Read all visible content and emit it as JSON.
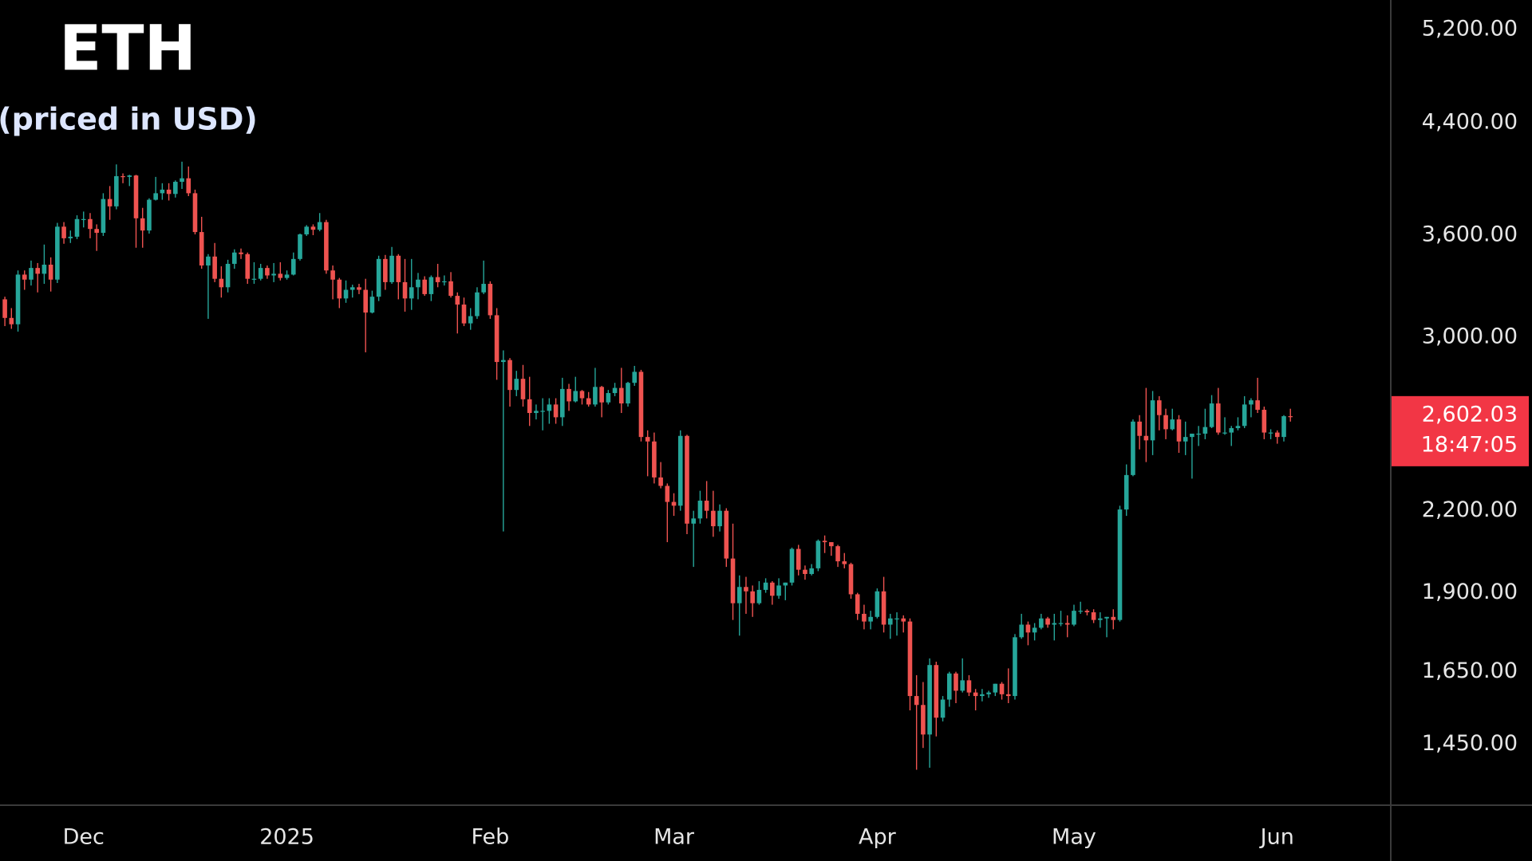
{
  "chart_data": {
    "type": "candlestick",
    "title": "ETH",
    "subtitle": "(priced in USD)",
    "log_scale": true,
    "up_color": "#26a69a",
    "down_color": "#ef5350",
    "last_price_color": "#f23645",
    "last_price_label": "2,602.03",
    "countdown": "18:47:05",
    "ylim": [
      1300,
      5480
    ],
    "yticks": [
      {
        "value": 5200,
        "label": "5,200.00"
      },
      {
        "value": 4400,
        "label": "4,400.00"
      },
      {
        "value": 3600,
        "label": "3,600.00"
      },
      {
        "value": 3000,
        "label": "3,000.00"
      },
      {
        "value": 2200,
        "label": "2,200.00"
      },
      {
        "value": 1900,
        "label": "1,900.00"
      },
      {
        "value": 1650,
        "label": "1,650.00"
      },
      {
        "value": 1450,
        "label": "1,450.00"
      }
    ],
    "categories": [
      null,
      null,
      null,
      null,
      null,
      null,
      null,
      null,
      null,
      null,
      null,
      null,
      "Dec",
      null,
      null,
      null,
      null,
      null,
      null,
      null,
      null,
      null,
      null,
      null,
      null,
      null,
      null,
      null,
      null,
      null,
      null,
      null,
      null,
      null,
      null,
      null,
      null,
      null,
      null,
      null,
      null,
      null,
      null,
      "2025",
      null,
      null,
      null,
      null,
      null,
      null,
      null,
      null,
      null,
      null,
      null,
      null,
      null,
      null,
      null,
      null,
      null,
      null,
      null,
      null,
      null,
      null,
      null,
      null,
      null,
      null,
      null,
      null,
      null,
      null,
      "Feb",
      null,
      null,
      null,
      null,
      null,
      null,
      null,
      null,
      null,
      null,
      null,
      null,
      null,
      null,
      null,
      null,
      null,
      null,
      null,
      null,
      null,
      null,
      null,
      null,
      null,
      null,
      null,
      "Mar",
      null,
      null,
      null,
      null,
      null,
      null,
      null,
      null,
      null,
      null,
      null,
      null,
      null,
      null,
      null,
      null,
      null,
      null,
      null,
      null,
      null,
      null,
      null,
      null,
      null,
      null,
      null,
      null,
      null,
      null,
      "Apr",
      null,
      null,
      null,
      null,
      null,
      null,
      null,
      null,
      null,
      null,
      null,
      null,
      null,
      null,
      null,
      null,
      null,
      null,
      null,
      null,
      null,
      null,
      null,
      null,
      null,
      null,
      null,
      null,
      null,
      "May",
      null,
      null,
      null,
      null,
      null,
      null,
      null,
      null,
      null,
      null,
      null,
      null,
      null,
      null,
      null,
      null,
      null,
      null,
      null,
      null,
      null,
      null,
      null,
      null,
      null,
      null,
      null,
      null,
      null,
      null,
      "Jun",
      null,
      null
    ],
    "candles": [
      [
        3210,
        3225,
        3060,
        3105
      ],
      [
        3105,
        3160,
        3045,
        3070
      ],
      [
        3070,
        3380,
        3030,
        3355
      ],
      [
        3355,
        3380,
        3265,
        3325
      ],
      [
        3325,
        3440,
        3290,
        3395
      ],
      [
        3395,
        3425,
        3250,
        3360
      ],
      [
        3360,
        3540,
        3300,
        3415
      ],
      [
        3415,
        3460,
        3255,
        3325
      ],
      [
        3325,
        3680,
        3305,
        3655
      ],
      [
        3655,
        3685,
        3545,
        3580
      ],
      [
        3580,
        3630,
        3550,
        3590
      ],
      [
        3590,
        3730,
        3575,
        3705
      ],
      [
        3705,
        3755,
        3650,
        3705
      ],
      [
        3705,
        3745,
        3580,
        3640
      ],
      [
        3640,
        3670,
        3500,
        3615
      ],
      [
        3615,
        3880,
        3595,
        3840
      ],
      [
        3840,
        3930,
        3700,
        3790
      ],
      [
        3790,
        4085,
        3770,
        4000
      ],
      [
        4000,
        4020,
        3950,
        3995
      ],
      [
        3995,
        4010,
        3930,
        4005
      ],
      [
        4005,
        4010,
        3520,
        3710
      ],
      [
        3710,
        3780,
        3520,
        3630
      ],
      [
        3630,
        3845,
        3610,
        3835
      ],
      [
        3835,
        3995,
        3830,
        3880
      ],
      [
        3880,
        3950,
        3835,
        3905
      ],
      [
        3905,
        3950,
        3830,
        3875
      ],
      [
        3875,
        3970,
        3850,
        3960
      ],
      [
        3960,
        4105,
        3910,
        3985
      ],
      [
        3985,
        4070,
        3860,
        3880
      ],
      [
        3880,
        3905,
        3605,
        3620
      ],
      [
        3620,
        3720,
        3390,
        3410
      ],
      [
        3410,
        3480,
        3100,
        3465
      ],
      [
        3465,
        3550,
        3310,
        3330
      ],
      [
        3330,
        3405,
        3220,
        3280
      ],
      [
        3280,
        3445,
        3250,
        3420
      ],
      [
        3420,
        3510,
        3390,
        3490
      ],
      [
        3490,
        3515,
        3450,
        3480
      ],
      [
        3480,
        3490,
        3300,
        3330
      ],
      [
        3330,
        3430,
        3300,
        3330
      ],
      [
        3330,
        3420,
        3320,
        3395
      ],
      [
        3395,
        3410,
        3330,
        3350
      ],
      [
        3350,
        3425,
        3310,
        3360
      ],
      [
        3360,
        3430,
        3320,
        3335
      ],
      [
        3335,
        3380,
        3325,
        3355
      ],
      [
        3355,
        3490,
        3350,
        3450
      ],
      [
        3450,
        3610,
        3440,
        3605
      ],
      [
        3605,
        3665,
        3595,
        3655
      ],
      [
        3655,
        3670,
        3600,
        3635
      ],
      [
        3635,
        3745,
        3625,
        3685
      ],
      [
        3685,
        3700,
        3360,
        3380
      ],
      [
        3380,
        3410,
        3210,
        3325
      ],
      [
        3325,
        3335,
        3160,
        3215
      ],
      [
        3215,
        3320,
        3190,
        3265
      ],
      [
        3265,
        3295,
        3220,
        3280
      ],
      [
        3280,
        3300,
        3240,
        3265
      ],
      [
        3265,
        3330,
        2920,
        3135
      ],
      [
        3135,
        3260,
        3130,
        3225
      ],
      [
        3225,
        3470,
        3200,
        3450
      ],
      [
        3450,
        3475,
        3265,
        3310
      ],
      [
        3310,
        3525,
        3300,
        3470
      ],
      [
        3470,
        3480,
        3210,
        3310
      ],
      [
        3310,
        3450,
        3140,
        3215
      ],
      [
        3215,
        3450,
        3150,
        3280
      ],
      [
        3280,
        3365,
        3210,
        3325
      ],
      [
        3325,
        3345,
        3230,
        3240
      ],
      [
        3240,
        3350,
        3200,
        3340
      ],
      [
        3340,
        3420,
        3280,
        3310
      ],
      [
        3310,
        3350,
        3290,
        3315
      ],
      [
        3315,
        3370,
        3220,
        3230
      ],
      [
        3230,
        3250,
        3020,
        3180
      ],
      [
        3180,
        3220,
        3060,
        3075
      ],
      [
        3075,
        3160,
        3040,
        3115
      ],
      [
        3115,
        3280,
        3100,
        3250
      ],
      [
        3250,
        3440,
        3240,
        3300
      ],
      [
        3300,
        3315,
        3100,
        3120
      ],
      [
        3120,
        3160,
        2780,
        2870
      ],
      [
        2870,
        2930,
        2120,
        2880
      ],
      [
        2880,
        2890,
        2650,
        2730
      ],
      [
        2730,
        2825,
        2700,
        2785
      ],
      [
        2785,
        2855,
        2650,
        2685
      ],
      [
        2685,
        2795,
        2560,
        2620
      ],
      [
        2620,
        2660,
        2590,
        2630
      ],
      [
        2630,
        2690,
        2540,
        2630
      ],
      [
        2630,
        2690,
        2570,
        2660
      ],
      [
        2660,
        2690,
        2570,
        2600
      ],
      [
        2600,
        2790,
        2560,
        2735
      ],
      [
        2735,
        2760,
        2630,
        2675
      ],
      [
        2675,
        2795,
        2670,
        2725
      ],
      [
        2725,
        2730,
        2660,
        2690
      ],
      [
        2690,
        2720,
        2650,
        2660
      ],
      [
        2660,
        2840,
        2650,
        2745
      ],
      [
        2745,
        2750,
        2600,
        2670
      ],
      [
        2670,
        2730,
        2660,
        2715
      ],
      [
        2715,
        2765,
        2700,
        2740
      ],
      [
        2740,
        2840,
        2620,
        2665
      ],
      [
        2665,
        2770,
        2650,
        2765
      ],
      [
        2765,
        2850,
        2750,
        2820
      ],
      [
        2820,
        2830,
        2490,
        2510
      ],
      [
        2510,
        2540,
        2340,
        2490
      ],
      [
        2490,
        2530,
        2310,
        2335
      ],
      [
        2335,
        2400,
        2290,
        2300
      ],
      [
        2300,
        2310,
        2080,
        2235
      ],
      [
        2235,
        2270,
        2180,
        2220
      ],
      [
        2220,
        2540,
        2200,
        2515
      ],
      [
        2515,
        2520,
        2110,
        2150
      ],
      [
        2150,
        2200,
        1990,
        2170
      ],
      [
        2170,
        2280,
        2150,
        2240
      ],
      [
        2240,
        2320,
        2170,
        2200
      ],
      [
        2200,
        2280,
        2100,
        2140
      ],
      [
        2140,
        2225,
        2120,
        2200
      ],
      [
        2200,
        2210,
        1990,
        2020
      ],
      [
        2020,
        2150,
        1810,
        1865
      ],
      [
        1865,
        1960,
        1760,
        1920
      ],
      [
        1920,
        1955,
        1830,
        1905
      ],
      [
        1905,
        1925,
        1820,
        1865
      ],
      [
        1865,
        1940,
        1860,
        1910
      ],
      [
        1910,
        1950,
        1900,
        1935
      ],
      [
        1935,
        1940,
        1860,
        1890
      ],
      [
        1890,
        1950,
        1880,
        1925
      ],
      [
        1925,
        1935,
        1875,
        1935
      ],
      [
        1935,
        2060,
        1925,
        2055
      ],
      [
        2055,
        2070,
        1960,
        1980
      ],
      [
        1980,
        1995,
        1945,
        1965
      ],
      [
        1965,
        2000,
        1960,
        1985
      ],
      [
        1985,
        2090,
        1975,
        2085
      ],
      [
        2085,
        2105,
        2040,
        2080
      ],
      [
        2080,
        2080,
        2030,
        2065
      ],
      [
        2065,
        2070,
        1990,
        2010
      ],
      [
        2010,
        2040,
        1985,
        2000
      ],
      [
        2000,
        2005,
        1880,
        1895
      ],
      [
        1895,
        1900,
        1810,
        1830
      ],
      [
        1830,
        1860,
        1780,
        1805
      ],
      [
        1805,
        1840,
        1780,
        1820
      ],
      [
        1820,
        1915,
        1815,
        1905
      ],
      [
        1905,
        1955,
        1770,
        1795
      ],
      [
        1795,
        1830,
        1750,
        1815
      ],
      [
        1815,
        1835,
        1760,
        1815
      ],
      [
        1815,
        1825,
        1770,
        1805
      ],
      [
        1805,
        1815,
        1540,
        1580
      ],
      [
        1580,
        1640,
        1385,
        1555
      ],
      [
        1555,
        1620,
        1440,
        1475
      ],
      [
        1475,
        1690,
        1390,
        1670
      ],
      [
        1670,
        1680,
        1470,
        1520
      ],
      [
        1520,
        1580,
        1510,
        1570
      ],
      [
        1570,
        1650,
        1550,
        1645
      ],
      [
        1645,
        1650,
        1560,
        1595
      ],
      [
        1595,
        1690,
        1590,
        1625
      ],
      [
        1625,
        1640,
        1580,
        1590
      ],
      [
        1590,
        1600,
        1540,
        1580
      ],
      [
        1580,
        1600,
        1565,
        1585
      ],
      [
        1585,
        1595,
        1575,
        1590
      ],
      [
        1590,
        1615,
        1580,
        1615
      ],
      [
        1615,
        1620,
        1570,
        1585
      ],
      [
        1585,
        1660,
        1560,
        1580
      ],
      [
        1580,
        1765,
        1570,
        1755
      ],
      [
        1755,
        1830,
        1750,
        1795
      ],
      [
        1795,
        1805,
        1730,
        1770
      ],
      [
        1770,
        1800,
        1745,
        1785
      ],
      [
        1785,
        1830,
        1780,
        1815
      ],
      [
        1815,
        1820,
        1785,
        1795
      ],
      [
        1795,
        1830,
        1745,
        1800
      ],
      [
        1800,
        1840,
        1790,
        1800
      ],
      [
        1800,
        1825,
        1755,
        1795
      ],
      [
        1795,
        1860,
        1790,
        1840
      ],
      [
        1840,
        1870,
        1830,
        1840
      ],
      [
        1840,
        1845,
        1825,
        1835
      ],
      [
        1835,
        1845,
        1800,
        1810
      ],
      [
        1810,
        1835,
        1785,
        1815
      ],
      [
        1815,
        1820,
        1755,
        1820
      ],
      [
        1820,
        1845,
        1780,
        1810
      ],
      [
        1810,
        2220,
        1805,
        2205
      ],
      [
        2205,
        2390,
        2180,
        2345
      ],
      [
        2345,
        2590,
        2340,
        2580
      ],
      [
        2580,
        2610,
        2455,
        2515
      ],
      [
        2515,
        2740,
        2400,
        2495
      ],
      [
        2495,
        2725,
        2430,
        2680
      ],
      [
        2680,
        2700,
        2540,
        2610
      ],
      [
        2610,
        2640,
        2500,
        2545
      ],
      [
        2545,
        2640,
        2540,
        2590
      ],
      [
        2590,
        2610,
        2440,
        2490
      ],
      [
        2490,
        2580,
        2430,
        2510
      ],
      [
        2510,
        2520,
        2330,
        2525
      ],
      [
        2525,
        2560,
        2470,
        2525
      ],
      [
        2525,
        2640,
        2500,
        2555
      ],
      [
        2555,
        2705,
        2550,
        2665
      ],
      [
        2665,
        2740,
        2520,
        2530
      ],
      [
        2530,
        2600,
        2520,
        2530
      ],
      [
        2530,
        2560,
        2470,
        2550
      ],
      [
        2550,
        2600,
        2540,
        2560
      ],
      [
        2560,
        2700,
        2550,
        2660
      ],
      [
        2660,
        2690,
        2600,
        2680
      ],
      [
        2680,
        2790,
        2620,
        2635
      ],
      [
        2635,
        2650,
        2500,
        2530
      ],
      [
        2530,
        2545,
        2500,
        2530
      ],
      [
        2530,
        2540,
        2480,
        2510
      ],
      [
        2510,
        2610,
        2490,
        2605
      ],
      [
        2605,
        2640,
        2580,
        2602.03
      ]
    ]
  }
}
